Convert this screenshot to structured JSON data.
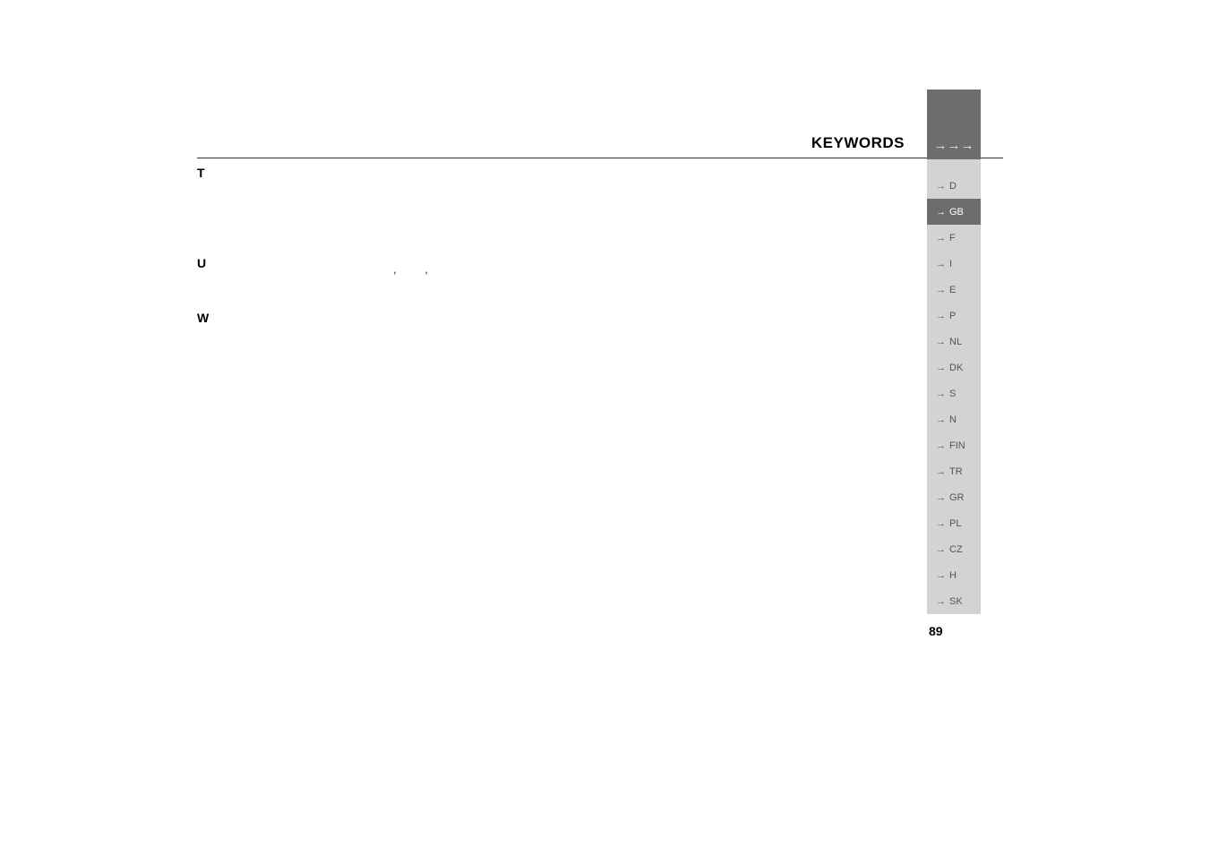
{
  "page": {
    "title": "KEYWORDS",
    "number": "89"
  },
  "sections": {
    "T": {
      "letter": "T",
      "commas": ", ,"
    },
    "U": {
      "letter": "U"
    },
    "W": {
      "letter": "W"
    }
  },
  "sidebar": {
    "triple_arrow": "→→→",
    "items": [
      {
        "code": "D",
        "active": false
      },
      {
        "code": "GB",
        "active": true
      },
      {
        "code": "F",
        "active": false
      },
      {
        "code": "I",
        "active": false
      },
      {
        "code": "E",
        "active": false
      },
      {
        "code": "P",
        "active": false
      },
      {
        "code": "NL",
        "active": false
      },
      {
        "code": "DK",
        "active": false
      },
      {
        "code": "S",
        "active": false
      },
      {
        "code": "N",
        "active": false
      },
      {
        "code": "FIN",
        "active": false
      },
      {
        "code": "TR",
        "active": false
      },
      {
        "code": "GR",
        "active": false
      },
      {
        "code": "PL",
        "active": false
      },
      {
        "code": "CZ",
        "active": false
      },
      {
        "code": "H",
        "active": false
      },
      {
        "code": "SK",
        "active": false
      }
    ]
  },
  "colors": {
    "sidebar_light": "#d3d3d3",
    "sidebar_dark": "#6d6d6d",
    "text": "#333333",
    "background": "#ffffff"
  }
}
